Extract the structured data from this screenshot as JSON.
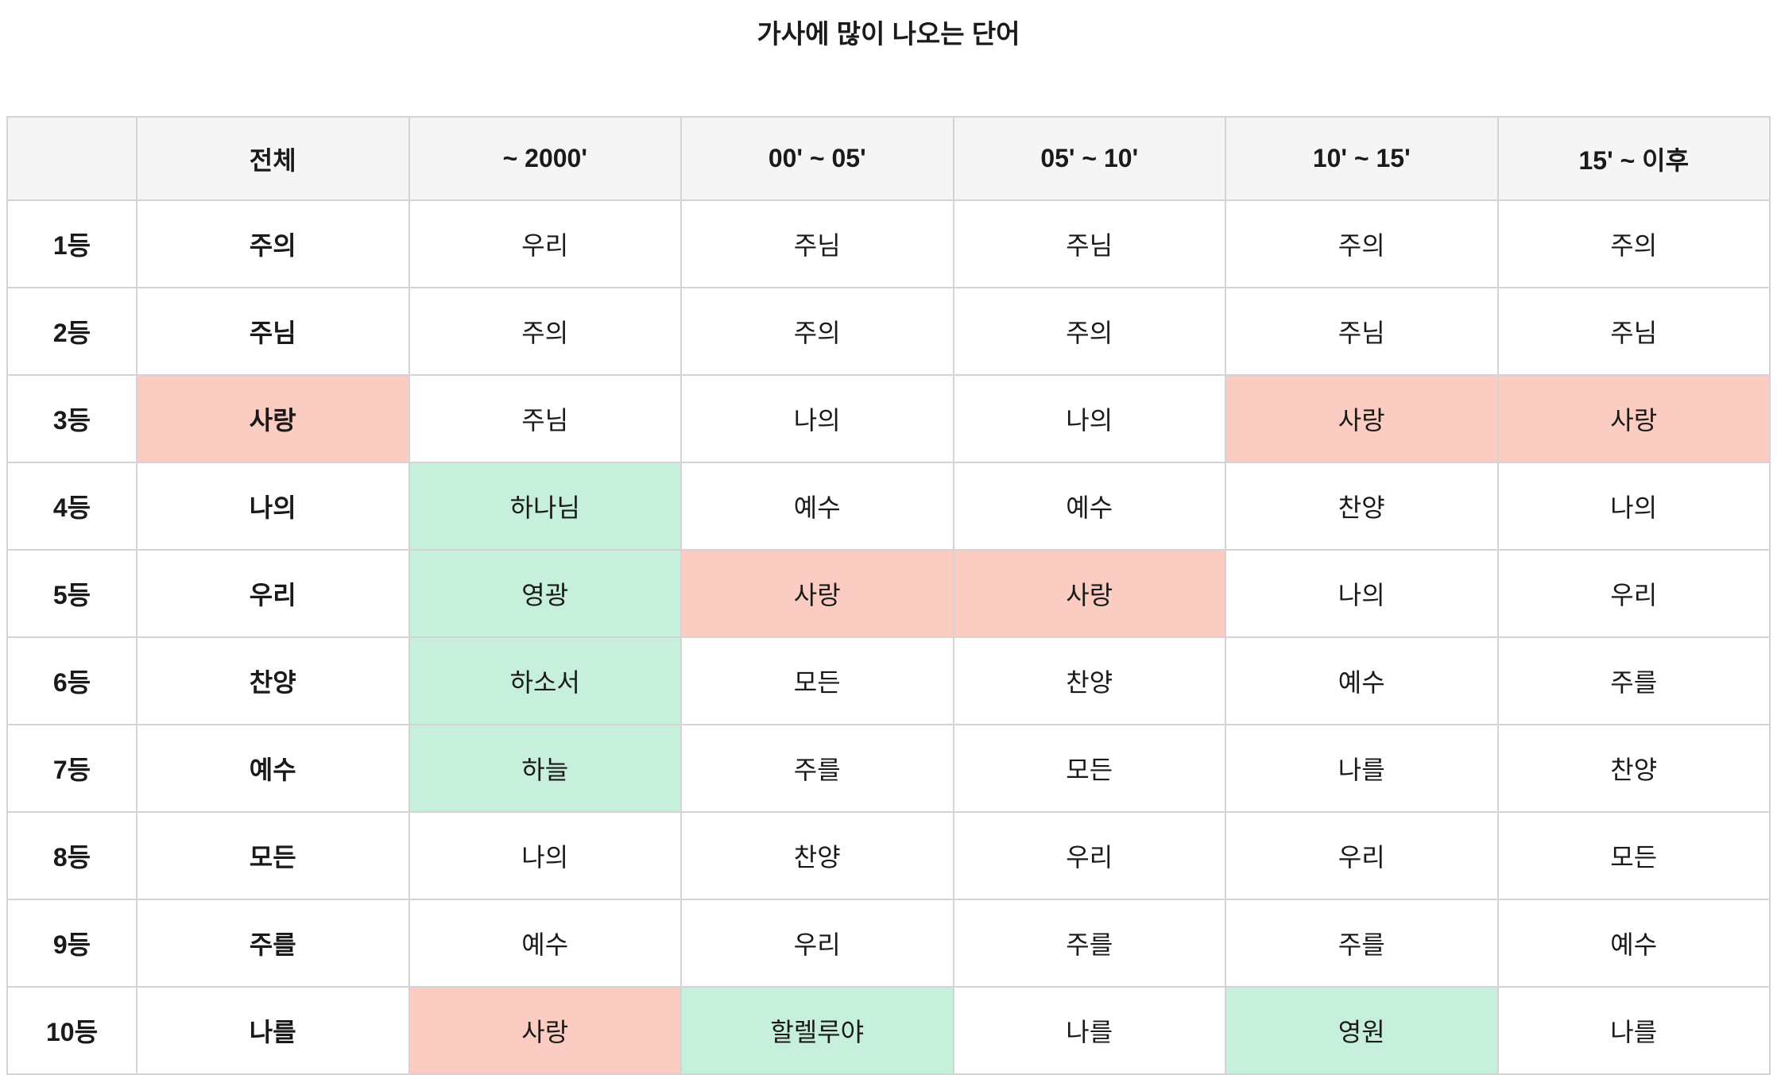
{
  "page": {
    "title": "가사에 많이 나오는 단어"
  },
  "colors": {
    "highlight_pink": "#FBCCC1",
    "highlight_green": "#C6F0DC",
    "header_background": "#F5F5F5",
    "border": "#D4D4D4",
    "text": "#1A1A1A"
  },
  "chart_data": {
    "type": "table",
    "title": "가사에 많이 나오는 단어",
    "columns": [
      "",
      "전체",
      "~ 2000'",
      "00' ~ 05'",
      "05' ~ 10'",
      "10' ~ 15'",
      "15' ~ 이후"
    ],
    "rows": [
      {
        "rank": "1등",
        "cells": [
          {
            "text": "주의",
            "hl": ""
          },
          {
            "text": "우리",
            "hl": ""
          },
          {
            "text": "주님",
            "hl": ""
          },
          {
            "text": "주님",
            "hl": ""
          },
          {
            "text": "주의",
            "hl": ""
          },
          {
            "text": "주의",
            "hl": ""
          }
        ]
      },
      {
        "rank": "2등",
        "cells": [
          {
            "text": "주님",
            "hl": ""
          },
          {
            "text": "주의",
            "hl": ""
          },
          {
            "text": "주의",
            "hl": ""
          },
          {
            "text": "주의",
            "hl": ""
          },
          {
            "text": "주님",
            "hl": ""
          },
          {
            "text": "주님",
            "hl": ""
          }
        ]
      },
      {
        "rank": "3등",
        "cells": [
          {
            "text": "사랑",
            "hl": "pink"
          },
          {
            "text": "주님",
            "hl": ""
          },
          {
            "text": "나의",
            "hl": ""
          },
          {
            "text": "나의",
            "hl": ""
          },
          {
            "text": "사랑",
            "hl": "pink"
          },
          {
            "text": "사랑",
            "hl": "pink"
          }
        ]
      },
      {
        "rank": "4등",
        "cells": [
          {
            "text": "나의",
            "hl": ""
          },
          {
            "text": "하나님",
            "hl": "green"
          },
          {
            "text": "예수",
            "hl": ""
          },
          {
            "text": "예수",
            "hl": ""
          },
          {
            "text": "찬양",
            "hl": ""
          },
          {
            "text": "나의",
            "hl": ""
          }
        ]
      },
      {
        "rank": "5등",
        "cells": [
          {
            "text": "우리",
            "hl": ""
          },
          {
            "text": "영광",
            "hl": "green"
          },
          {
            "text": "사랑",
            "hl": "pink"
          },
          {
            "text": "사랑",
            "hl": "pink"
          },
          {
            "text": "나의",
            "hl": ""
          },
          {
            "text": "우리",
            "hl": ""
          }
        ]
      },
      {
        "rank": "6등",
        "cells": [
          {
            "text": "찬양",
            "hl": ""
          },
          {
            "text": "하소서",
            "hl": "green"
          },
          {
            "text": "모든",
            "hl": ""
          },
          {
            "text": "찬양",
            "hl": ""
          },
          {
            "text": "예수",
            "hl": ""
          },
          {
            "text": "주를",
            "hl": ""
          }
        ]
      },
      {
        "rank": "7등",
        "cells": [
          {
            "text": "예수",
            "hl": ""
          },
          {
            "text": "하늘",
            "hl": "green"
          },
          {
            "text": "주를",
            "hl": ""
          },
          {
            "text": "모든",
            "hl": ""
          },
          {
            "text": "나를",
            "hl": ""
          },
          {
            "text": "찬양",
            "hl": ""
          }
        ]
      },
      {
        "rank": "8등",
        "cells": [
          {
            "text": "모든",
            "hl": ""
          },
          {
            "text": "나의",
            "hl": ""
          },
          {
            "text": "찬양",
            "hl": ""
          },
          {
            "text": "우리",
            "hl": ""
          },
          {
            "text": "우리",
            "hl": ""
          },
          {
            "text": "모든",
            "hl": ""
          }
        ]
      },
      {
        "rank": "9등",
        "cells": [
          {
            "text": "주를",
            "hl": ""
          },
          {
            "text": "예수",
            "hl": ""
          },
          {
            "text": "우리",
            "hl": ""
          },
          {
            "text": "주를",
            "hl": ""
          },
          {
            "text": "주를",
            "hl": ""
          },
          {
            "text": "예수",
            "hl": ""
          }
        ]
      },
      {
        "rank": "10등",
        "cells": [
          {
            "text": "나를",
            "hl": ""
          },
          {
            "text": "사랑",
            "hl": "pink"
          },
          {
            "text": "할렐루야",
            "hl": "green"
          },
          {
            "text": "나를",
            "hl": ""
          },
          {
            "text": "영원",
            "hl": "green"
          },
          {
            "text": "나를",
            "hl": ""
          }
        ]
      }
    ]
  }
}
